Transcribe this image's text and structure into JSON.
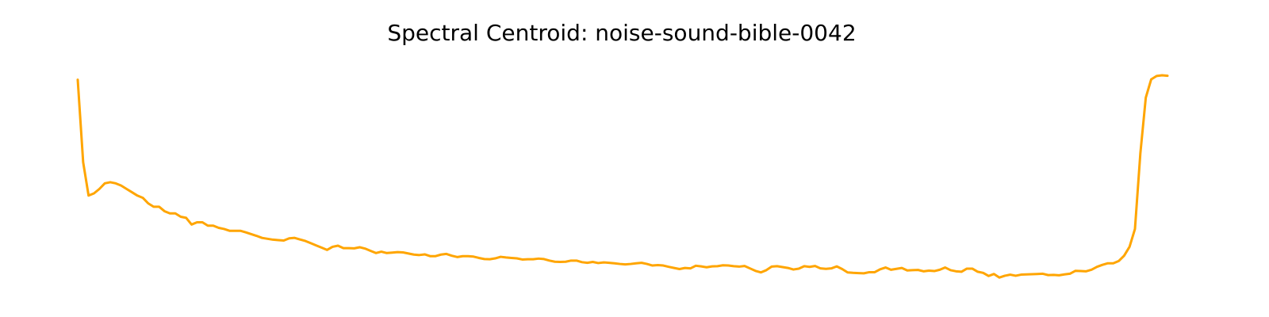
{
  "chart_data": {
    "type": "line",
    "title": "Spectral Centroid: noise-sound-bible-0042",
    "xlabel": "",
    "ylabel": "",
    "axes_visible": false,
    "grid": false,
    "ylim": [
      0,
      100
    ],
    "series": [
      {
        "color": "#ffa500",
        "y": [
          93,
          56,
          41,
          42,
          44,
          46.5,
          47,
          46.5,
          45.5,
          44,
          42.5,
          41,
          40,
          37.5,
          36,
          36,
          34,
          33,
          33,
          31.5,
          31,
          28,
          29,
          29,
          27.5,
          27.5,
          26.5,
          26,
          25.2,
          25.2,
          25.2,
          24.5,
          23.7,
          22.9,
          22,
          21.6,
          21.2,
          21,
          20.8,
          21.8,
          22,
          21.3,
          20.6,
          19.6,
          18.6,
          17.6,
          16.6,
          18,
          18.5,
          17.4,
          17.4,
          17.3,
          17.8,
          17.2,
          16.2,
          15.2,
          15.8,
          15.2,
          15.4,
          15.6,
          15.5,
          15,
          14.5,
          14.3,
          14.6,
          13.8,
          13.8,
          14.5,
          14.8,
          14,
          13.4,
          13.8,
          13.8,
          13.6,
          13,
          12.5,
          12.4,
          12.8,
          13.5,
          13.2,
          13,
          12.8,
          12.3,
          12.4,
          12.4,
          12.7,
          12.5,
          11.8,
          11.3,
          11.2,
          11.3,
          11.8,
          11.8,
          11.1,
          10.8,
          11.2,
          10.7,
          11,
          10.8,
          10.6,
          10.3,
          10.1,
          10.3,
          10.6,
          10.8,
          10.3,
          9.6,
          9.8,
          9.6,
          9,
          8.5,
          8,
          8.5,
          8.3,
          9.5,
          9.2,
          8.8,
          9.2,
          9.3,
          9.7,
          9.6,
          9.3,
          9.1,
          9.4,
          8.3,
          7.2,
          6.5,
          7.5,
          9.1,
          9.3,
          8.9,
          8.5,
          7.8,
          8.2,
          9.3,
          9,
          9.4,
          8.3,
          8.1,
          8.3,
          9.2,
          8,
          6.5,
          6.3,
          6.2,
          6.1,
          6.6,
          6.6,
          7.9,
          8.7,
          7.7,
          8.1,
          8.5,
          7.4,
          7.5,
          7.6,
          7,
          7.3,
          7.1,
          7.7,
          8.7,
          7.5,
          7,
          6.8,
          8.2,
          8.2,
          6.8,
          6.3,
          4.9,
          5.8,
          4.2,
          5,
          5.5,
          5,
          5.5,
          5.6,
          5.7,
          5.8,
          5.9,
          5.3,
          5.4,
          5.2,
          5.6,
          5.9,
          7.2,
          7.1,
          7,
          7.7,
          9,
          9.9,
          10.6,
          10.6,
          11.6,
          14,
          18,
          26,
          60,
          85,
          93.2,
          94.7,
          95,
          94.8
        ]
      }
    ]
  }
}
